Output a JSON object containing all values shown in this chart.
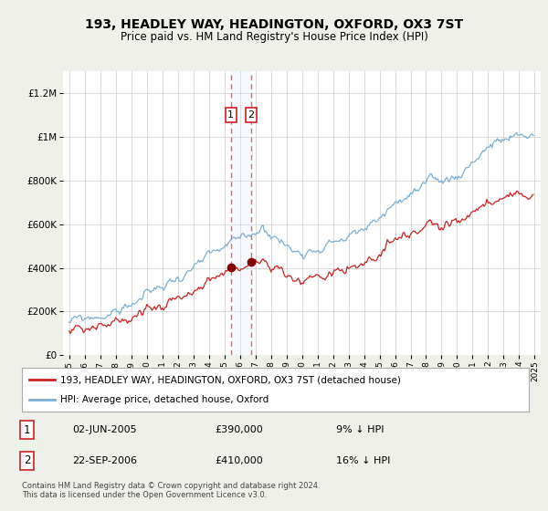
{
  "title": "193, HEADLEY WAY, HEADINGTON, OXFORD, OX3 7ST",
  "subtitle": "Price paid vs. HM Land Registry's House Price Index (HPI)",
  "legend_line1": "193, HEADLEY WAY, HEADINGTON, OXFORD, OX3 7ST (detached house)",
  "legend_line2": "HPI: Average price, detached house, Oxford",
  "transaction1_date": "02-JUN-2005",
  "transaction1_price": "£390,000",
  "transaction1_hpi": "9% ↓ HPI",
  "transaction1_year": 2005.42,
  "transaction2_date": "22-SEP-2006",
  "transaction2_price": "£410,000",
  "transaction2_hpi": "16% ↓ HPI",
  "transaction2_year": 2006.72,
  "footnote": "Contains HM Land Registry data © Crown copyright and database right 2024.\nThis data is licensed under the Open Government Licence v3.0.",
  "hpi_color": "#7bafd4",
  "property_color": "#cc2222",
  "vline1_color": "#dd6666",
  "vline2_color": "#dd6666",
  "shade_color": "#ddeeff",
  "ylim_min": 0,
  "ylim_max": 1300000,
  "yticks": [
    0,
    200000,
    400000,
    600000,
    800000,
    1000000,
    1200000
  ],
  "ytick_labels": [
    "£0",
    "£200K",
    "£400K",
    "£600K",
    "£800K",
    "£1M",
    "£1.2M"
  ],
  "background_color": "#f0f0ea",
  "plot_bg_color": "#ffffff"
}
